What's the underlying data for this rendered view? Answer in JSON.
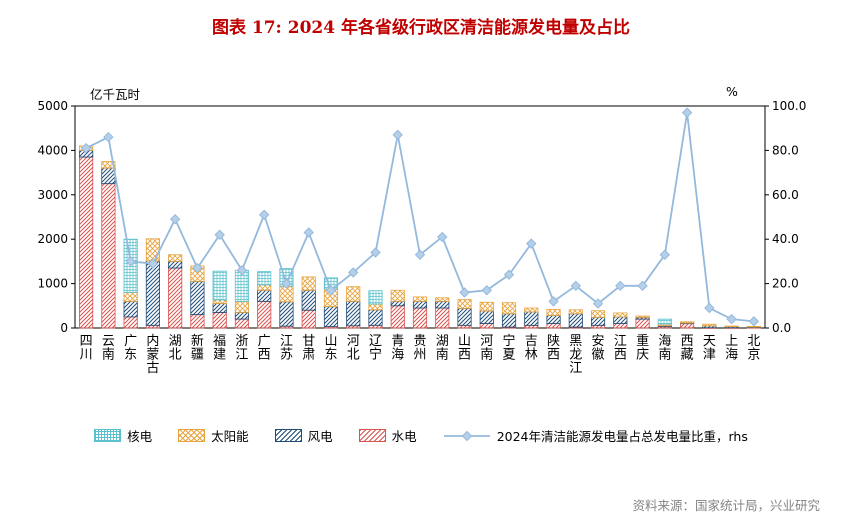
{
  "title": "图表 17: 2024 年各省级行政区清洁能源发电量及占比",
  "source": "资料来源：国家统计局，兴业研究",
  "chart_data": {
    "type": "bar",
    "subtype": "stacked-bar-with-line",
    "title": "图表 17: 2024 年各省级行政区清洁能源发电量及占比",
    "grid": false,
    "legend_position": "bottom",
    "left_axis": {
      "label": "亿千瓦时",
      "min": 0,
      "max": 5000,
      "step": 1000
    },
    "right_axis": {
      "label": "%",
      "min": 0,
      "max": 100,
      "step": 20,
      "decimals": 1
    },
    "categories": [
      "四川",
      "云南",
      "广东",
      "内蒙古",
      "湖北",
      "新疆",
      "福建",
      "浙江",
      "广西",
      "江苏",
      "甘肃",
      "山东",
      "河北",
      "辽宁",
      "青海",
      "贵州",
      "湖南",
      "山西",
      "河南",
      "宁夏",
      "吉林",
      "陕西",
      "黑龙江",
      "安徽",
      "江西",
      "重庆",
      "海南",
      "西藏",
      "天津",
      "上海",
      "北京"
    ],
    "series": [
      {
        "name": "水电",
        "key": "hydro",
        "type": "bar",
        "axis": "left",
        "hatch": "diag",
        "color": "#d9534f",
        "values": [
          3850,
          3250,
          250,
          60,
          1350,
          300,
          350,
          200,
          600,
          40,
          400,
          30,
          50,
          60,
          500,
          450,
          450,
          60,
          100,
          20,
          60,
          100,
          20,
          60,
          100,
          200,
          30,
          100,
          5,
          5,
          10
        ]
      },
      {
        "name": "风电",
        "key": "wind",
        "type": "bar",
        "axis": "left",
        "hatch": "diag",
        "color": "#1f4e79",
        "values": [
          150,
          350,
          350,
          1450,
          150,
          750,
          200,
          150,
          250,
          550,
          450,
          450,
          550,
          350,
          100,
          150,
          150,
          380,
          280,
          300,
          300,
          180,
          300,
          180,
          150,
          40,
          20,
          10,
          40,
          25,
          15
        ]
      },
      {
        "name": "太阳能",
        "key": "solar",
        "type": "bar",
        "axis": "left",
        "hatch": "cross",
        "color": "#e8a33d",
        "values": [
          100,
          150,
          200,
          500,
          150,
          350,
          80,
          250,
          120,
          350,
          300,
          400,
          330,
          130,
          250,
          100,
          80,
          200,
          200,
          250,
          90,
          140,
          90,
          150,
          90,
          30,
          40,
          30,
          40,
          15,
          10
        ]
      },
      {
        "name": "核电",
        "key": "nuclear",
        "type": "bar",
        "axis": "left",
        "hatch": "grid",
        "color": "#5bc2cd",
        "values": [
          0,
          0,
          1200,
          0,
          0,
          0,
          650,
          700,
          300,
          400,
          0,
          250,
          0,
          300,
          0,
          0,
          0,
          0,
          0,
          0,
          0,
          0,
          0,
          0,
          0,
          0,
          110,
          0,
          0,
          0,
          0
        ]
      },
      {
        "name": "2024年清洁能源发电量占总发电量比重，rhs",
        "key": "share",
        "type": "line",
        "axis": "right",
        "color": "#94b9dd",
        "marker": "diamond",
        "marker_fill": "#b6cfe9",
        "values": [
          81,
          86,
          30,
          29,
          49,
          27,
          42,
          26,
          51,
          20,
          43,
          17,
          25,
          34,
          87,
          33,
          41,
          16,
          17,
          24,
          38,
          12,
          19,
          11,
          19,
          19,
          33,
          97,
          9,
          4,
          3
        ]
      }
    ]
  }
}
